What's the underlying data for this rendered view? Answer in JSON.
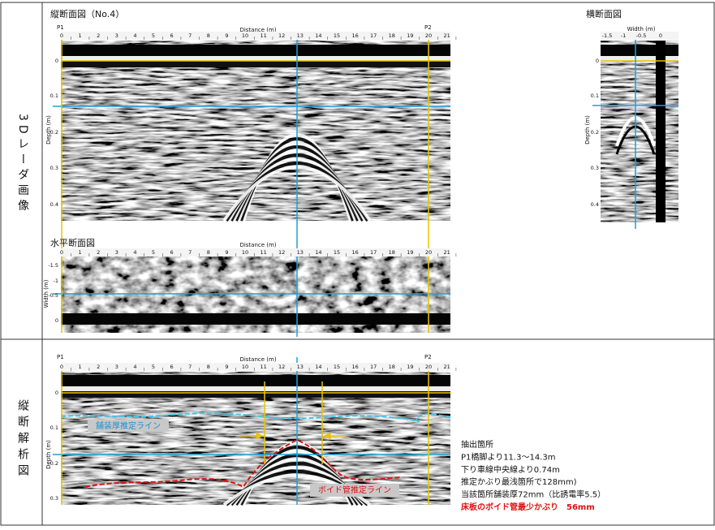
{
  "side_labels": [
    "3Dレーダ画像",
    "縦断解析図"
  ],
  "longitudinal": {
    "title": "縦断面図（No.4）",
    "start": "P1",
    "end": "P2",
    "x_label": "Distance (m)",
    "x_ticks": [
      "0",
      "1",
      "2",
      "3",
      "4",
      "5",
      "6",
      "7",
      "8",
      "9",
      "10",
      "11",
      "12",
      "13",
      "14",
      "15",
      "16",
      "17",
      "18",
      "19",
      "20",
      "21"
    ],
    "y_label": "Depth (m)",
    "y_ticks": [
      "0",
      "0.1",
      "0.2",
      "0.3",
      "0.4"
    ]
  },
  "cross": {
    "title": "横断面図",
    "x_label": "Width (m)",
    "x_ticks": [
      "-1.5",
      "-1",
      "-0.5",
      "0"
    ],
    "y_label": "Depth (m)",
    "y_ticks": [
      "0",
      "0.1",
      "0.2",
      "0.3",
      "0.4"
    ]
  },
  "horizontal": {
    "title": "水平断面図",
    "x_label": "Distance (m)",
    "x_ticks": [
      "0",
      "1",
      "2",
      "3",
      "4",
      "5",
      "6",
      "7",
      "8",
      "9",
      "10",
      "11",
      "12",
      "13",
      "14",
      "15",
      "16",
      "17",
      "18",
      "19",
      "20",
      "21"
    ],
    "y_label": "Width (m)",
    "y_ticks": [
      "-1.5",
      "-1",
      "-0.5",
      "0"
    ]
  },
  "analysis": {
    "start": "P1",
    "end": "P2",
    "x_label": "Distance (m)",
    "x_ticks": [
      "0",
      "1",
      "2",
      "3",
      "4",
      "5",
      "6",
      "7",
      "8",
      "9",
      "10",
      "11",
      "12",
      "13",
      "14",
      "15",
      "16",
      "17",
      "18",
      "19",
      "20",
      "21"
    ],
    "y_label": "Depth (m)",
    "y_ticks": [
      "0",
      "0.1",
      "0.2",
      "0.3"
    ],
    "pavement_line": "舗装厚推定ライン",
    "void_line": "ボイド管推定ライン",
    "notes": [
      "抽出箇所",
      "P1橋脚より11.3～14.3m",
      "下り車線中央線より0.74m",
      "推定かぶり最浅箇所で128mm)",
      "当該箇所舗装厚72mm（比誘電率5.5）"
    ],
    "highlight_note": "床板のボイド管最少かぶり　56mm"
  }
}
